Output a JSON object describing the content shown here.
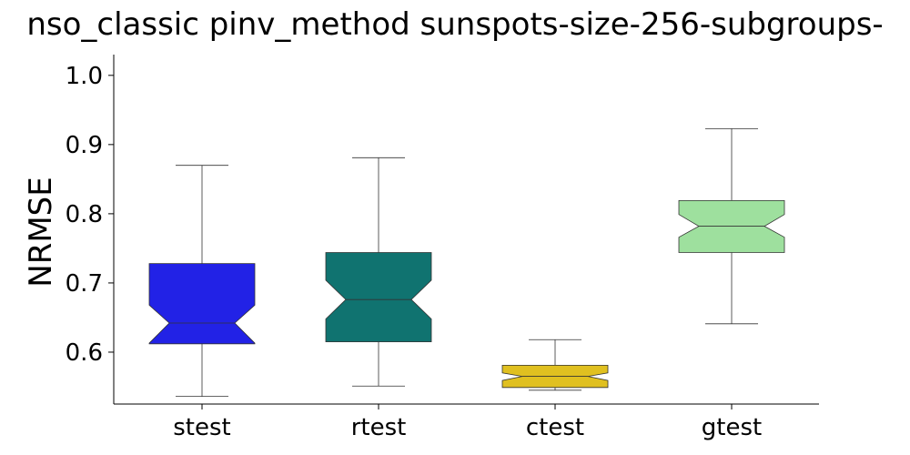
{
  "chart_data": {
    "type": "boxplot",
    "notched": true,
    "title": "nso_classic pinv_method sunspots-size-256-subgroups-",
    "xlabel": "",
    "ylabel": "NRMSE",
    "ylim": [
      0.525,
      1.03
    ],
    "yticks": [
      0.6,
      0.7,
      0.8,
      0.9,
      1.0
    ],
    "ytick_labels": [
      "0.6",
      "0.7",
      "0.8",
      "0.9",
      "1.0"
    ],
    "grid": false,
    "categories": [
      "stest",
      "rtest",
      "ctest",
      "gtest"
    ],
    "boxes": [
      {
        "category": "stest",
        "whisker_low": 0.536,
        "q1": 0.612,
        "median": 0.642,
        "q3": 0.728,
        "whisker_high": 0.87,
        "notch_low": 0.613,
        "notch_high": 0.668,
        "color": "#2222e6"
      },
      {
        "category": "rtest",
        "whisker_low": 0.551,
        "q1": 0.615,
        "median": 0.676,
        "q3": 0.744,
        "whisker_high": 0.881,
        "notch_low": 0.648,
        "notch_high": 0.704,
        "color": "#107370"
      },
      {
        "category": "ctest",
        "whisker_low": 0.545,
        "q1": 0.549,
        "median": 0.565,
        "q3": 0.581,
        "whisker_high": 0.618,
        "notch_low": 0.559,
        "notch_high": 0.57,
        "color": "#e0c020"
      },
      {
        "category": "gtest",
        "whisker_low": 0.641,
        "q1": 0.744,
        "median": 0.782,
        "q3": 0.819,
        "whisker_high": 0.923,
        "notch_low": 0.766,
        "notch_high": 0.799,
        "color": "#9ee09e"
      }
    ]
  }
}
